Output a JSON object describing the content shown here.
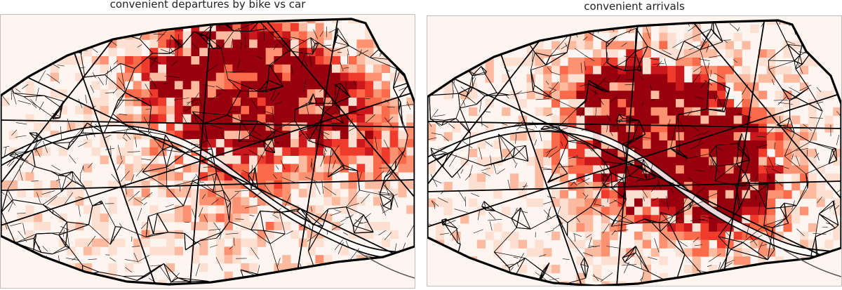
{
  "panels": [
    {
      "title": "convenient departures by bike vs car"
    },
    {
      "title": "convenient arrivals"
    }
  ],
  "colors": {
    "background": "#fff5f0",
    "scale": [
      "#fee0d2",
      "#fcbba1",
      "#fc9272",
      "#fb6a4a",
      "#ef3b2c",
      "#cb181d",
      "#99000d"
    ],
    "road": "#000000",
    "river_edge": "#555555"
  }
}
